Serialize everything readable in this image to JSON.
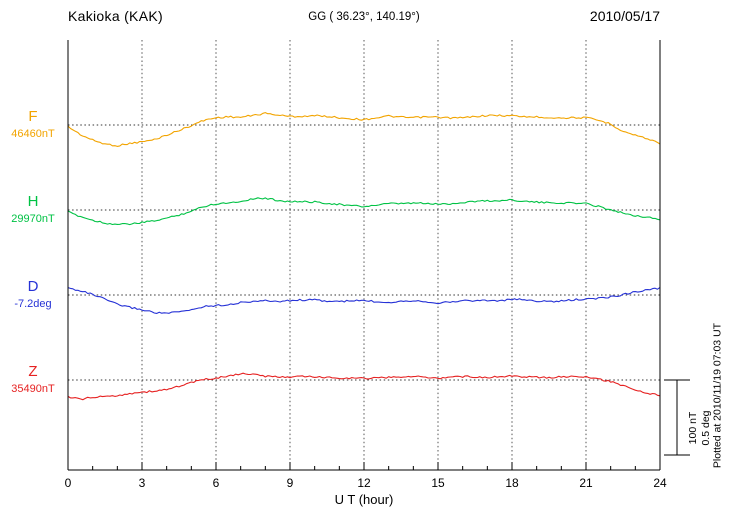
{
  "header": {
    "station": "Kakioka (KAK)",
    "coordinates": "GG ( 36.23°, 140.19°)",
    "date": "2010/05/17"
  },
  "footer": {
    "x_axis_title": "U T (hour)"
  },
  "side": {
    "plotted_at": "Plotted at 2010/11/19 07:03 UT",
    "scale_labels": [
      "100 nT",
      "0.5 deg"
    ]
  },
  "chart_data": {
    "type": "line",
    "title": "Kakioka (KAK) magnetogram 2010/05/17",
    "x": {
      "label": "U T (hour)",
      "min": 0,
      "max": 24,
      "ticks": [
        0,
        3,
        6,
        9,
        12,
        15,
        18,
        21,
        24
      ],
      "step_hours": 0.5
    },
    "scale": {
      "nT_per_division": 100,
      "deg_per_division": 0.5
    },
    "grid": "vertical-dotted-every-3h, dotted-baseline-per-trace",
    "series": [
      {
        "name": "F",
        "unit": "nT",
        "baseline_value": 46460,
        "baseline_label": "46460nT",
        "color": "#f2a400",
        "deviations": [
          -2,
          -12,
          -20,
          -26,
          -28,
          -24,
          -22,
          -20,
          -14,
          -7,
          0,
          6,
          9,
          11,
          11,
          13,
          15,
          13,
          12,
          12,
          12,
          11,
          10,
          9,
          7,
          9,
          12,
          11,
          10,
          10,
          10,
          10,
          10,
          11,
          12,
          13,
          13,
          11,
          10,
          10,
          10,
          10,
          9,
          6,
          2,
          -8,
          -14,
          -19,
          -24
        ]
      },
      {
        "name": "H",
        "unit": "nT",
        "baseline_value": 29970,
        "baseline_label": "29970nT",
        "color": "#00c244",
        "deviations": [
          -2,
          -8,
          -14,
          -18,
          -19,
          -18,
          -17,
          -15,
          -11,
          -6,
          -1,
          4,
          8,
          10,
          12,
          15,
          15,
          13,
          12,
          11,
          10,
          9,
          8,
          6,
          4,
          6,
          9,
          9,
          9,
          8,
          8,
          9,
          10,
          11,
          12,
          13,
          14,
          11,
          10,
          10,
          10,
          9,
          8,
          5,
          1,
          -4,
          -8,
          -10,
          -12
        ]
      },
      {
        "name": "D",
        "unit": "deg",
        "baseline_value": -7.2,
        "baseline_label": "-7.2deg",
        "color": "#2632d6",
        "deviations": [
          0.05,
          0.03,
          0.0,
          -0.03,
          -0.06,
          -0.08,
          -0.1,
          -0.12,
          -0.12,
          -0.11,
          -0.1,
          -0.08,
          -0.07,
          -0.06,
          -0.05,
          -0.045,
          -0.04,
          -0.04,
          -0.035,
          -0.035,
          -0.035,
          -0.04,
          -0.04,
          -0.04,
          -0.04,
          -0.045,
          -0.045,
          -0.04,
          -0.04,
          -0.045,
          -0.05,
          -0.045,
          -0.04,
          -0.04,
          -0.035,
          -0.035,
          -0.03,
          -0.035,
          -0.04,
          -0.04,
          -0.04,
          -0.035,
          -0.03,
          -0.02,
          -0.01,
          0.0,
          0.02,
          0.035,
          0.05
        ]
      },
      {
        "name": "Z",
        "unit": "nT",
        "baseline_value": 35490,
        "baseline_label": "35490nT",
        "color": "#e62222",
        "deviations": [
          -22,
          -26,
          -24,
          -22,
          -20,
          -18,
          -17,
          -15,
          -12,
          -8,
          -4,
          0,
          3,
          6,
          8,
          7,
          5,
          5,
          4,
          4,
          4,
          4,
          3,
          2,
          2,
          3,
          4,
          4,
          4,
          4,
          3,
          4,
          4,
          4,
          4,
          5,
          5,
          4,
          4,
          4,
          4,
          4,
          4,
          2,
          -2,
          -8,
          -13,
          -17,
          -20
        ]
      }
    ]
  }
}
